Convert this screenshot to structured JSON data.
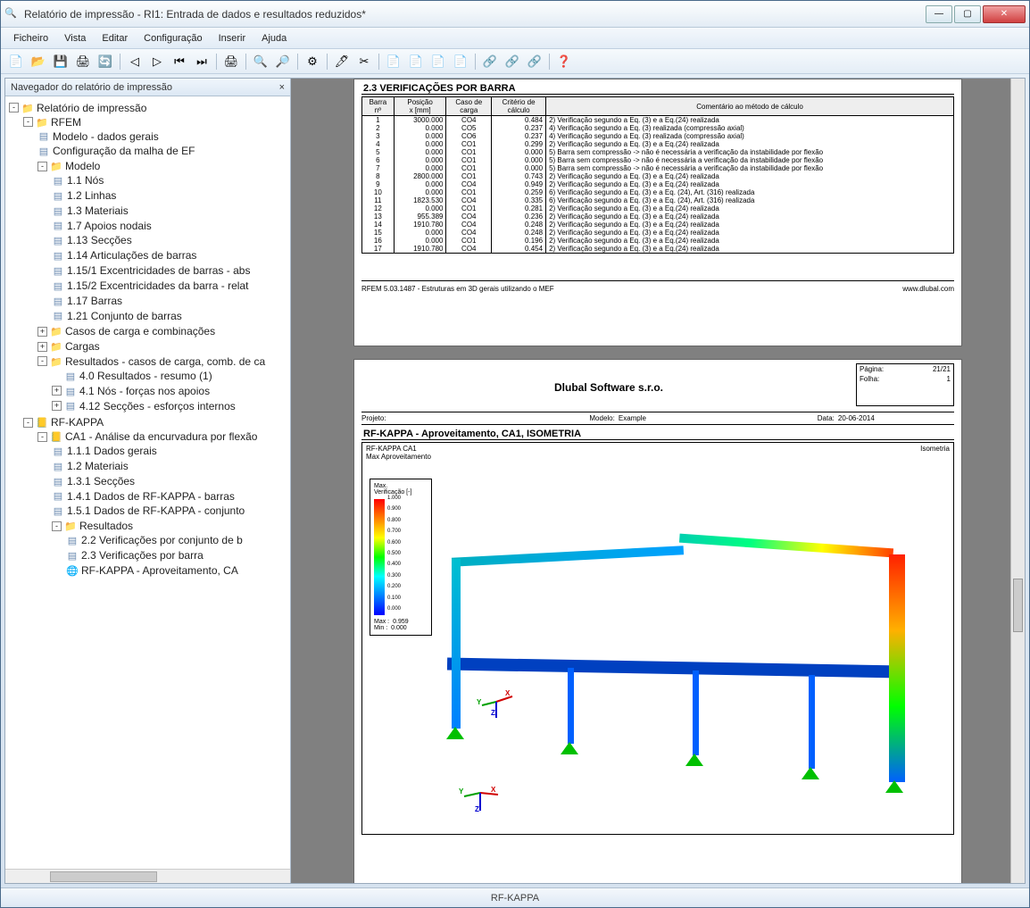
{
  "window": {
    "title": "Relatório de impressão - RI1: Entrada de dados e resultados reduzidos*"
  },
  "menu": [
    "Ficheiro",
    "Vista",
    "Editar",
    "Configuração",
    "Inserir",
    "Ajuda"
  ],
  "nav": {
    "header": "Navegador do relatório de impressão",
    "root": "Relatório de impressão",
    "rfem": "RFEM",
    "rfem_items": [
      "Modelo - dados gerais",
      "Configuração da malha de EF"
    ],
    "modelo": "Modelo",
    "modelo_items": [
      "1.1 Nós",
      "1.2 Linhas",
      "1.3 Materiais",
      "1.7 Apoios nodais",
      "1.13 Secções",
      "1.14 Articulações de barras",
      "1.15/1 Excentricidades de barras - abs",
      "1.15/2 Excentricidades da barra - relat",
      "1.17 Barras",
      "1.21 Conjunto de barras"
    ],
    "casos": "Casos de carga e combinações",
    "cargas": "Cargas",
    "resultados": "Resultados - casos de carga, comb. de ca",
    "res_items": [
      "4.0 Resultados - resumo (1)",
      "4.1 Nós - forças nos apoios",
      "4.12 Secções - esforços internos"
    ],
    "rfkappa": "RF-KAPPA",
    "ca1": "CA1 - Análise da encurvadura por flexão",
    "ca1_items": [
      "1.1.1 Dados gerais",
      "1.2 Materiais",
      "1.3.1 Secções",
      "1.4.1 Dados de RF-KAPPA - barras",
      "1.5.1 Dados de RF-KAPPA - conjunto"
    ],
    "ca1_res": "Resultados",
    "ca1_res_items": [
      "2.2 Verificações por conjunto de b",
      "2.3 Verificações por barra",
      "RF-KAPPA -  Aproveitamento, CA"
    ]
  },
  "section_title": "2.3 VERIFICAÇÕES POR BARRA",
  "table": {
    "headers": [
      "Barra\nnº",
      "Posição\nx [mm]",
      "Caso de\ncarga",
      "Critério de\ncálculo",
      "Comentário ao método de cálculo"
    ],
    "rows": [
      [
        "1",
        "3000.000",
        "CO4",
        "0.484",
        "2) Verificação segundo a Eq. (3) e a Eq.(24) realizada"
      ],
      [
        "2",
        "0.000",
        "CO5",
        "0.237",
        "4) Verificação segundo a Eq. (3) realizada (compressão axial)"
      ],
      [
        "3",
        "0.000",
        "CO6",
        "0.237",
        "4) Verificação segundo a Eq. (3) realizada (compressão axial)"
      ],
      [
        "4",
        "0.000",
        "CO1",
        "0.299",
        "2) Verificação segundo a Eq. (3) e a Eq.(24) realizada"
      ],
      [
        "5",
        "0.000",
        "CO1",
        "0.000",
        "5) Barra sem compressão -> não é necessária a verificação da instabilidade por flexão"
      ],
      [
        "6",
        "0.000",
        "CO1",
        "0.000",
        "5) Barra sem compressão -> não é necessária a verificação da instabilidade por flexão"
      ],
      [
        "7",
        "0.000",
        "CO1",
        "0.000",
        "5) Barra sem compressão -> não é necessária a verificação da instabilidade por flexão"
      ],
      [
        "8",
        "2800.000",
        "CO1",
        "0.743",
        "2) Verificação segundo a Eq. (3) e a Eq.(24) realizada"
      ],
      [
        "9",
        "0.000",
        "CO4",
        "0.949",
        "2) Verificação segundo a Eq. (3) e a Eq.(24) realizada"
      ],
      [
        "10",
        "0.000",
        "CO1",
        "0.259",
        "6) Verificação segundo a Eq. (3) e a Eq. (24), Art. (316) realizada"
      ],
      [
        "11",
        "1823.530",
        "CO4",
        "0.335",
        "6) Verificação segundo a Eq. (3) e a Eq. (24), Art. (316) realizada"
      ],
      [
        "12",
        "0.000",
        "CO1",
        "0.281",
        "2) Verificação segundo a Eq. (3) e a Eq.(24) realizada"
      ],
      [
        "13",
        "955.389",
        "CO4",
        "0.236",
        "2) Verificação segundo a Eq. (3) e a Eq.(24) realizada"
      ],
      [
        "14",
        "1910.780",
        "CO4",
        "0.248",
        "2) Verificação segundo a Eq. (3) e a Eq.(24) realizada"
      ],
      [
        "15",
        "0.000",
        "CO4",
        "0.248",
        "2) Verificação segundo a Eq. (3) e a Eq.(24) realizada"
      ],
      [
        "16",
        "0.000",
        "CO1",
        "0.196",
        "2) Verificação segundo a Eq. (3) e a Eq.(24) realizada"
      ],
      [
        "17",
        "1910.780",
        "CO4",
        "0.454",
        "2) Verificação segundo a Eq. (3) e a Eq.(24) realizada"
      ]
    ]
  },
  "footer1": {
    "left": "RFEM 5.03.1487 - Estruturas em 3D gerais utilizando o MEF",
    "right": "www.dlubal.com"
  },
  "page2": {
    "company": "Dlubal Software s.r.o.",
    "meta": {
      "pagina_k": "Página:",
      "pagina_v": "21/21",
      "folha_k": "Folha:",
      "folha_v": "1"
    },
    "proj": {
      "projeto_k": "Projeto:",
      "projeto_v": "",
      "modelo_k": "Modelo:",
      "modelo_v": "Example",
      "data_k": "Data:",
      "data_v": "20-06-2014"
    },
    "title": "RF-KAPPA -  Aproveitamento, CA1, ISOMETRIA",
    "box_tl1": "RF-KAPPA CA1",
    "box_tl2": "Max Aproveitamento",
    "box_tr": "Isometria",
    "legend_title": "Max.\nVerificação [-]",
    "legend_ticks": [
      "1.000",
      "0.900",
      "0.800",
      "0.700",
      "0.600",
      "0.500",
      "0.400",
      "0.300",
      "0.200",
      "0.100",
      "0.000"
    ],
    "legend_max_k": "Max :",
    "legend_max_v": "0.959",
    "legend_min_k": "Min :",
    "legend_min_v": "0.000"
  },
  "status": "RF-KAPPA",
  "toolbar_icons": [
    "📄",
    "📂",
    "💾",
    "🖨",
    "🔄",
    "",
    "◁",
    "▷",
    "⏮",
    "⏭",
    "",
    "🖨",
    "",
    "🔍",
    "🔎",
    "",
    "⚙",
    "",
    "🖊",
    "✂",
    "",
    "📄",
    "📄",
    "📄",
    "📄",
    "",
    "🔗",
    "🔗",
    "🔗",
    "",
    "❓"
  ]
}
